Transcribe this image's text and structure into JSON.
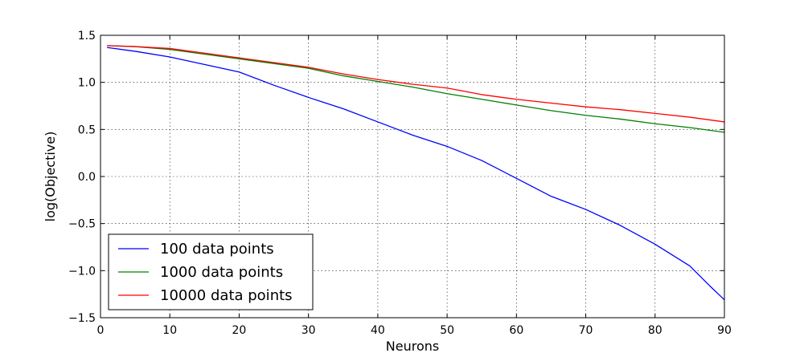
{
  "chart_data": {
    "type": "line",
    "title": "",
    "xlabel": "Neurons",
    "ylabel": "log(Objective)",
    "xlim": [
      0,
      90
    ],
    "ylim": [
      -1.5,
      1.5
    ],
    "xticks": [
      0,
      10,
      20,
      30,
      40,
      50,
      60,
      70,
      80,
      90
    ],
    "xtick_labels": [
      "0",
      "10",
      "20",
      "30",
      "40",
      "50",
      "60",
      "70",
      "80",
      "90"
    ],
    "yticks": [
      -1.5,
      -1.0,
      -0.5,
      0.0,
      0.5,
      1.0,
      1.5
    ],
    "ytick_labels": [
      "−1.5",
      "−1.0",
      "−0.5",
      "0.0",
      "0.5",
      "1.0",
      "1.5"
    ],
    "grid": true,
    "legend_position": "bottom-left",
    "series": [
      {
        "name": "100 data points",
        "color": "#0000ff",
        "x": [
          1,
          5,
          10,
          15,
          20,
          25,
          30,
          35,
          40,
          45,
          50,
          55,
          60,
          65,
          70,
          75,
          80,
          85,
          88,
          90
        ],
        "y": [
          1.37,
          1.33,
          1.27,
          1.19,
          1.11,
          0.97,
          0.84,
          0.72,
          0.58,
          0.44,
          0.32,
          0.17,
          -0.02,
          -0.21,
          -0.35,
          -0.52,
          -0.72,
          -0.95,
          -1.17,
          -1.31
        ]
      },
      {
        "name": "1000 data points",
        "color": "#008000",
        "x": [
          1,
          5,
          10,
          15,
          20,
          25,
          30,
          35,
          40,
          45,
          50,
          55,
          60,
          65,
          70,
          75,
          80,
          85,
          90
        ],
        "y": [
          1.39,
          1.38,
          1.35,
          1.3,
          1.25,
          1.2,
          1.15,
          1.07,
          1.01,
          0.95,
          0.88,
          0.82,
          0.76,
          0.7,
          0.65,
          0.61,
          0.56,
          0.52,
          0.47
        ]
      },
      {
        "name": "10000 data points",
        "color": "#ff0000",
        "x": [
          1,
          5,
          10,
          15,
          20,
          25,
          30,
          35,
          40,
          45,
          50,
          55,
          60,
          65,
          70,
          75,
          80,
          85,
          90
        ],
        "y": [
          1.39,
          1.38,
          1.36,
          1.31,
          1.26,
          1.21,
          1.16,
          1.09,
          1.03,
          0.98,
          0.94,
          0.87,
          0.82,
          0.78,
          0.74,
          0.71,
          0.67,
          0.63,
          0.58
        ]
      }
    ]
  }
}
